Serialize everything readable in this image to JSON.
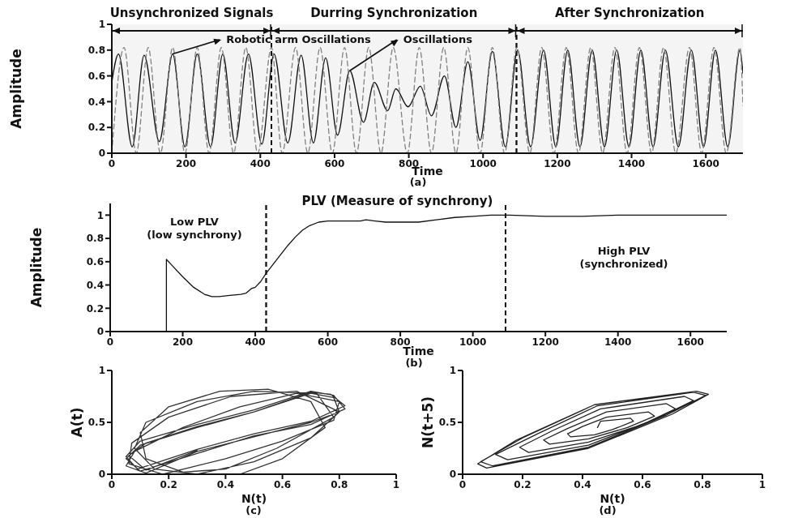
{
  "chart_data": [
    {
      "type": "line",
      "xlabel": "Time",
      "ylabel": "Amplitude",
      "xlim": [
        0,
        1700
      ],
      "xticks": [
        0,
        200,
        400,
        600,
        800,
        1000,
        1200,
        1400,
        1600
      ],
      "ylim": [
        0,
        1
      ],
      "yticks": [
        0,
        0.2,
        0.4,
        0.6,
        0.8,
        1
      ],
      "marker": "none",
      "series": [
        {
          "color": "#111111",
          "line_style": "solid",
          "x": [
            0,
            18,
            55,
            87,
            128,
            164,
            197,
            230,
            266,
            299,
            332,
            368,
            404,
            437,
            474,
            510,
            543,
            576,
            608,
            641,
            678,
            707,
            743,
            765,
            798,
            831,
            861,
            896,
            927,
            959,
            992,
            1025,
            1060,
            1093,
            1128,
            1163,
            1196,
            1228,
            1261,
            1294,
            1327,
            1360,
            1393,
            1425,
            1458,
            1491,
            1526,
            1561,
            1594,
            1626,
            1659,
            1692,
            1700
          ],
          "values": [
            0.55,
            0.77,
            0.05,
            0.76,
            0.09,
            0.77,
            0.05,
            0.77,
            0.05,
            0.77,
            0.08,
            0.77,
            0.07,
            0.77,
            0.08,
            0.76,
            0.08,
            0.74,
            0.14,
            0.64,
            0.24,
            0.55,
            0.33,
            0.5,
            0.36,
            0.52,
            0.29,
            0.6,
            0.2,
            0.71,
            0.1,
            0.79,
            0.05,
            0.8,
            0.05,
            0.8,
            0.05,
            0.8,
            0.05,
            0.8,
            0.05,
            0.8,
            0.05,
            0.8,
            0.05,
            0.8,
            0.05,
            0.8,
            0.05,
            0.8,
            0.05,
            0.8,
            0.62
          ]
        },
        {
          "color": "#808080",
          "line_style": "dashed",
          "x": [
            0,
            33,
            66,
            98,
            131,
            164,
            197,
            230,
            262,
            295,
            328,
            361,
            393,
            430,
            459,
            495,
            528,
            561,
            594,
            627,
            659,
            692,
            725,
            758,
            796,
            828,
            861,
            894,
            927,
            959,
            992,
            1025,
            1058,
            1091,
            1126,
            1158,
            1191,
            1224,
            1257,
            1290,
            1322,
            1355,
            1388,
            1421,
            1454,
            1486,
            1519,
            1556,
            1589,
            1622,
            1655,
            1692,
            1700
          ],
          "values": [
            0,
            0.82,
            0,
            0.82,
            0,
            0.82,
            0,
            0.82,
            0,
            0.82,
            0,
            0.82,
            0,
            0.82,
            0,
            0.82,
            0,
            0.82,
            0,
            0.82,
            0,
            0.82,
            0,
            0.82,
            0,
            0.82,
            0,
            0.82,
            0,
            0.82,
            0,
            0.82,
            0,
            0.82,
            0,
            0.82,
            0,
            0.82,
            0,
            0.82,
            0,
            0.82,
            0,
            0.82,
            0,
            0.82,
            0,
            0.82,
            0,
            0.82,
            0,
            0.82,
            0.37
          ]
        }
      ],
      "ref_lines": [
        {
          "axis": "x",
          "value": 430,
          "line_style": "dashed"
        },
        {
          "axis": "x",
          "value": 1090,
          "line_style": "dashed"
        }
      ],
      "bands": [
        {
          "axis": "x",
          "from": 0,
          "to": 430,
          "label": "Unsynchronized Signals",
          "color": "#f4f4f4"
        },
        {
          "axis": "x",
          "from": 430,
          "to": 1090,
          "label": "Durring Synchronization",
          "color": "#f4f4f4"
        },
        {
          "axis": "x",
          "from": 1090,
          "to": 1700,
          "label": "After Synchronization",
          "color": "#f4f4f4"
        }
      ],
      "annotations": [
        "(a)",
        {
          "text": "Robotic arm Oscillations",
          "x": 164,
          "y": 0.77
        },
        {
          "text": "Oscillations",
          "x": 641,
          "y": 0.64
        }
      ]
    },
    {
      "type": "line",
      "title": "PLV (Measure of synchrony)",
      "xlabel": "Time",
      "ylabel": "Amplitude",
      "xlim": [
        0,
        1700
      ],
      "xticks": [
        0,
        200,
        400,
        600,
        800,
        1000,
        1200,
        1400,
        1600
      ],
      "ylim": [
        0,
        1.1
      ],
      "yticks": [
        0,
        0.2,
        0.4,
        0.6,
        0.8,
        1
      ],
      "marker": "none",
      "series": [
        {
          "color": "#111111",
          "line_style": "solid",
          "x": [
            155,
            155,
            170,
            200,
            230,
            260,
            280,
            300,
            330,
            360,
            375,
            390,
            400,
            415,
            430,
            450,
            470,
            490,
            510,
            530,
            550,
            575,
            600,
            650,
            690,
            705,
            730,
            760,
            800,
            850,
            900,
            950,
            1000,
            1050,
            1100,
            1200,
            1300,
            1400,
            1500,
            1600,
            1700
          ],
          "values": [
            0,
            0.62,
            0.57,
            0.47,
            0.38,
            0.32,
            0.3,
            0.3,
            0.31,
            0.32,
            0.33,
            0.37,
            0.38,
            0.43,
            0.5,
            0.58,
            0.66,
            0.74,
            0.81,
            0.87,
            0.91,
            0.94,
            0.95,
            0.95,
            0.95,
            0.96,
            0.95,
            0.94,
            0.94,
            0.94,
            0.96,
            0.98,
            0.99,
            1,
            1,
            0.99,
            0.99,
            1,
            1,
            1,
            1
          ]
        }
      ],
      "ref_lines": [
        {
          "axis": "x",
          "value": 430,
          "line_style": "dashed"
        },
        {
          "axis": "x",
          "value": 1090,
          "line_style": "dashed"
        }
      ],
      "annotations": [
        "Low PLV\n(low synchrony)",
        "High PLV\n(synchronized)",
        "(b)"
      ]
    },
    {
      "type": "line",
      "xlabel": "N(t)",
      "ylabel": "A(t)",
      "xlim": [
        0,
        1
      ],
      "xticks": [
        0,
        0.2,
        0.4,
        0.6,
        0.8,
        1
      ],
      "ylim": [
        0,
        1
      ],
      "yticks": [
        0,
        0.5,
        1
      ],
      "marker": "none",
      "series": [
        {
          "color": "#333333",
          "line_style": "solid",
          "x": [
            0.45,
            0.6,
            0.75,
            0.7,
            0.55,
            0.38,
            0.2,
            0.1,
            0.12,
            0.25,
            0.4,
            0.58,
            0.78,
            0.72,
            0.5,
            0.3,
            0.12,
            0.08,
            0.15,
            0.3,
            0.5,
            0.7,
            0.8,
            0.65,
            0.42,
            0.2,
            0.07,
            0.06,
            0.18,
            0.4,
            0.6,
            0.78,
            0.8,
            0.65,
            0.45,
            0.25,
            0.08,
            0.05,
            0.12,
            0.3,
            0.5,
            0.7,
            0.8,
            0.78,
            0.7,
            0.5,
            0.3,
            0.1,
            0.05,
            0.1,
            0.3,
            0.5,
            0.7,
            0.82,
            0.78,
            0.7,
            0.5,
            0.3,
            0.1,
            0.05,
            0.09,
            0.3,
            0.5,
            0.7,
            0.82,
            0.77,
            0.7,
            0.5,
            0.3,
            0.12,
            0.06,
            0.12,
            0.3
          ],
          "values": [
            0,
            0.15,
            0.45,
            0.7,
            0.82,
            0.8,
            0.65,
            0.4,
            0.15,
            0.02,
            0.05,
            0.25,
            0.55,
            0.78,
            0.8,
            0.7,
            0.5,
            0.25,
            0.05,
            0,
            0.12,
            0.35,
            0.6,
            0.8,
            0.75,
            0.55,
            0.3,
            0.1,
            0,
            0.15,
            0.32,
            0.52,
            0.7,
            0.78,
            0.65,
            0.45,
            0.22,
            0.08,
            0.01,
            0.22,
            0.36,
            0.5,
            0.6,
            0.74,
            0.78,
            0.6,
            0.45,
            0.28,
            0.15,
            0.03,
            0.2,
            0.37,
            0.48,
            0.63,
            0.76,
            0.8,
            0.62,
            0.48,
            0.32,
            0.17,
            0.05,
            0.24,
            0.39,
            0.51,
            0.66,
            0.77,
            0.79,
            0.6,
            0.46,
            0.3,
            0.18,
            0.04,
            0.23
          ]
        }
      ],
      "annotations": [
        "(c)"
      ]
    },
    {
      "type": "line",
      "xlabel": "N(t)",
      "ylabel": "N(t+5)",
      "xlim": [
        0,
        1
      ],
      "xticks": [
        0,
        0.2,
        0.4,
        0.6,
        0.8,
        1
      ],
      "ylim": [
        0,
        1
      ],
      "yticks": [
        0,
        0.5,
        1
      ],
      "marker": "none",
      "series": [
        {
          "color": "#222222",
          "line_style": "solid",
          "x": [
            0.45,
            0.46,
            0.56,
            0.57,
            0.5,
            0.44,
            0.36,
            0.35,
            0.4,
            0.48,
            0.62,
            0.64,
            0.55,
            0.42,
            0.29,
            0.27,
            0.35,
            0.48,
            0.68,
            0.71,
            0.6,
            0.42,
            0.22,
            0.19,
            0.3,
            0.46,
            0.74,
            0.77,
            0.65,
            0.42,
            0.15,
            0.11,
            0.25,
            0.45,
            0.77,
            0.81,
            0.68,
            0.42,
            0.1,
            0.06,
            0.2,
            0.44,
            0.78,
            0.82,
            0.7,
            0.42,
            0.08,
            0.05,
            0.18,
            0.44
          ],
          "values": [
            0.45,
            0.51,
            0.54,
            0.51,
            0.43,
            0.38,
            0.36,
            0.39,
            0.46,
            0.55,
            0.6,
            0.56,
            0.45,
            0.34,
            0.29,
            0.33,
            0.44,
            0.6,
            0.68,
            0.63,
            0.48,
            0.31,
            0.21,
            0.26,
            0.42,
            0.63,
            0.75,
            0.71,
            0.54,
            0.28,
            0.14,
            0.19,
            0.39,
            0.66,
            0.79,
            0.76,
            0.57,
            0.26,
            0.08,
            0.12,
            0.35,
            0.67,
            0.8,
            0.77,
            0.58,
            0.25,
            0.06,
            0.1,
            0.33,
            0.67
          ]
        }
      ],
      "annotations": [
        "(d)"
      ]
    }
  ]
}
